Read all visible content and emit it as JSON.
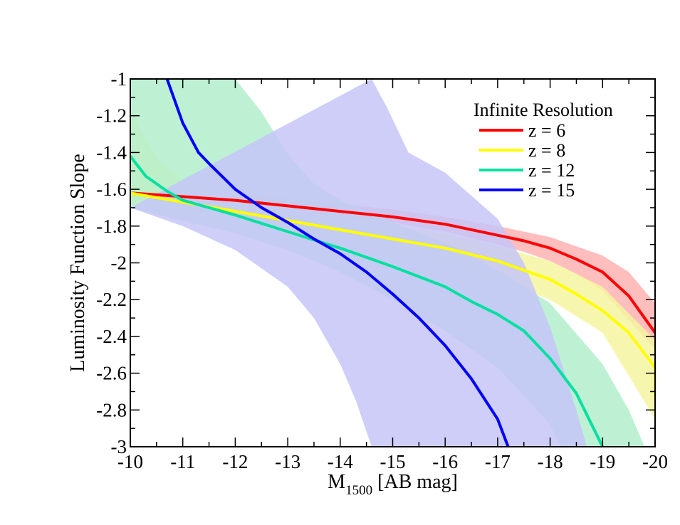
{
  "chart_data": {
    "type": "line",
    "title": "",
    "xlabel": "M",
    "xlabel_sub": "1500",
    "xlabel_unit": " [AB mag]",
    "ylabel": "Luminosity Function Slope",
    "xlim": [
      -10,
      -20
    ],
    "ylim": [
      -3,
      -1
    ],
    "x_ticks": [
      -10,
      -11,
      -12,
      -13,
      -14,
      -15,
      -16,
      -17,
      -18,
      -19,
      -20
    ],
    "x_tick_labels": [
      "-10",
      "-11",
      "-12",
      "-13",
      "-14",
      "-15",
      "-16",
      "-17",
      "-18",
      "-19",
      "-20"
    ],
    "y_ticks": [
      -1,
      -1.2,
      -1.4,
      -1.6,
      -1.8,
      -2,
      -2.2,
      -2.4,
      -2.6,
      -2.8,
      -3
    ],
    "y_tick_labels": [
      "-1",
      "-1.2",
      "-1.4",
      "-1.6",
      "-1.8",
      "-2",
      "-2.2",
      "-2.4",
      "-2.6",
      "-2.8",
      "-3"
    ],
    "grid": false,
    "legend": {
      "title": "Infinite Resolution",
      "position": "top-right"
    },
    "series": [
      {
        "name": "z = 6",
        "color": "#ff0000",
        "band_color": "#ffb3b3",
        "points": [
          [
            -10,
            -1.62
          ],
          [
            -11,
            -1.64
          ],
          [
            -12,
            -1.66
          ],
          [
            -13,
            -1.69
          ],
          [
            -14,
            -1.72
          ],
          [
            -15,
            -1.75
          ],
          [
            -16,
            -1.79
          ],
          [
            -17,
            -1.85
          ],
          [
            -17.5,
            -1.88
          ],
          [
            -18,
            -1.92
          ],
          [
            -18.5,
            -1.98
          ],
          [
            -19,
            -2.05
          ],
          [
            -19.5,
            -2.18
          ],
          [
            -20,
            -2.38
          ]
        ],
        "band_upper": [
          [
            -10,
            -1.6
          ],
          [
            -11,
            -1.61
          ],
          [
            -12,
            -1.63
          ],
          [
            -13,
            -1.65
          ],
          [
            -14,
            -1.68
          ],
          [
            -15,
            -1.71
          ],
          [
            -16,
            -1.75
          ],
          [
            -17,
            -1.8
          ],
          [
            -17.5,
            -1.83
          ],
          [
            -18,
            -1.86
          ],
          [
            -18.5,
            -1.91
          ],
          [
            -19,
            -1.96
          ],
          [
            -19.5,
            -2.05
          ],
          [
            -20,
            -2.22
          ]
        ],
        "band_lower": [
          [
            -10,
            -1.66
          ],
          [
            -11,
            -1.67
          ],
          [
            -12,
            -1.69
          ],
          [
            -13,
            -1.72
          ],
          [
            -14,
            -1.75
          ],
          [
            -15,
            -1.78
          ],
          [
            -16,
            -1.83
          ],
          [
            -17,
            -1.9
          ],
          [
            -17.5,
            -1.94
          ],
          [
            -18,
            -1.99
          ],
          [
            -18.5,
            -2.06
          ],
          [
            -19,
            -2.15
          ],
          [
            -19.5,
            -2.31
          ],
          [
            -20,
            -2.47
          ]
        ]
      },
      {
        "name": "z = 8",
        "color": "#ffff00",
        "band_color": "#f5f5a0",
        "points": [
          [
            -10,
            -1.62
          ],
          [
            -11,
            -1.67
          ],
          [
            -12,
            -1.72
          ],
          [
            -13,
            -1.77
          ],
          [
            -14,
            -1.82
          ],
          [
            -15,
            -1.87
          ],
          [
            -16,
            -1.92
          ],
          [
            -17,
            -1.99
          ],
          [
            -18,
            -2.09
          ],
          [
            -18.5,
            -2.17
          ],
          [
            -19,
            -2.26
          ],
          [
            -19.5,
            -2.38
          ],
          [
            -20,
            -2.57
          ],
          [
            -20,
            -2.72
          ]
        ],
        "band_upper": [
          [
            -10,
            -1.17
          ],
          [
            -10.5,
            -1.43
          ],
          [
            -11,
            -1.55
          ],
          [
            -12,
            -1.64
          ],
          [
            -13,
            -1.7
          ],
          [
            -14,
            -1.76
          ],
          [
            -15,
            -1.8
          ],
          [
            -16,
            -1.84
          ],
          [
            -17,
            -1.91
          ],
          [
            -18,
            -1.99
          ],
          [
            -19,
            -2.13
          ],
          [
            -20,
            -2.42
          ]
        ],
        "band_lower": [
          [
            -10,
            -1.68
          ],
          [
            -11,
            -1.74
          ],
          [
            -12,
            -1.79
          ],
          [
            -13,
            -1.83
          ],
          [
            -14,
            -1.88
          ],
          [
            -15,
            -1.94
          ],
          [
            -16,
            -2.01
          ],
          [
            -17,
            -2.09
          ],
          [
            -18,
            -2.2
          ],
          [
            -19,
            -2.38
          ],
          [
            -20,
            -2.85
          ]
        ]
      },
      {
        "name": "z = 12",
        "color": "#00e0a0",
        "band_color": "#b3eecd",
        "points": [
          [
            -10,
            -1.42
          ],
          [
            -10.3,
            -1.53
          ],
          [
            -10.7,
            -1.61
          ],
          [
            -11,
            -1.66
          ],
          [
            -11.5,
            -1.7
          ],
          [
            -12,
            -1.74
          ],
          [
            -13,
            -1.83
          ],
          [
            -14,
            -1.92
          ],
          [
            -15,
            -2.02
          ],
          [
            -16,
            -2.13
          ],
          [
            -16.5,
            -2.21
          ],
          [
            -17,
            -2.28
          ],
          [
            -17.5,
            -2.37
          ],
          [
            -18,
            -2.52
          ],
          [
            -18.5,
            -2.71
          ],
          [
            -19,
            -3.0
          ]
        ],
        "band_upper": [
          [
            -10,
            -1.0
          ],
          [
            -11,
            -1.0
          ],
          [
            -12,
            -1.0
          ],
          [
            -12.5,
            -1.18
          ],
          [
            -13,
            -1.41
          ],
          [
            -13.5,
            -1.57
          ],
          [
            -14,
            -1.66
          ],
          [
            -15,
            -1.78
          ],
          [
            -16,
            -1.89
          ],
          [
            -17,
            -2.04
          ],
          [
            -18,
            -2.22
          ],
          [
            -19,
            -2.55
          ],
          [
            -19.5,
            -2.8
          ],
          [
            -19.8,
            -3.0
          ]
        ],
        "band_lower": [
          [
            -10,
            -1.7
          ],
          [
            -11,
            -1.77
          ],
          [
            -12,
            -1.84
          ],
          [
            -13,
            -1.93
          ],
          [
            -14,
            -2.05
          ],
          [
            -15,
            -2.2
          ],
          [
            -16,
            -2.37
          ],
          [
            -17,
            -2.57
          ],
          [
            -17.5,
            -2.72
          ],
          [
            -18,
            -2.88
          ],
          [
            -18.2,
            -3.0
          ]
        ]
      },
      {
        "name": "z = 15",
        "color": "#0000ff",
        "band_color": "#c5c5f8",
        "points": [
          [
            -10.7,
            -1.0
          ],
          [
            -11,
            -1.24
          ],
          [
            -11.3,
            -1.4
          ],
          [
            -11.5,
            -1.46
          ],
          [
            -12,
            -1.6
          ],
          [
            -12.5,
            -1.7
          ],
          [
            -13,
            -1.78
          ],
          [
            -13.5,
            -1.87
          ],
          [
            -14,
            -1.95
          ],
          [
            -14.5,
            -2.05
          ],
          [
            -15,
            -2.17
          ],
          [
            -15.5,
            -2.3
          ],
          [
            -16,
            -2.45
          ],
          [
            -16.5,
            -2.63
          ],
          [
            -17,
            -2.85
          ],
          [
            -17.2,
            -3.0
          ]
        ],
        "band_upper": [
          [
            -14.6,
            -1.0
          ],
          [
            -14.9,
            -1.16
          ],
          [
            -15.3,
            -1.4
          ],
          [
            -16,
            -1.51
          ],
          [
            -17,
            -1.76
          ],
          [
            -17.5,
            -2.0
          ],
          [
            -18,
            -2.35
          ],
          [
            -18.5,
            -2.8
          ],
          [
            -18.7,
            -3.0
          ]
        ],
        "band_lower": [
          [
            -10,
            -1.7
          ],
          [
            -11,
            -1.8
          ],
          [
            -12,
            -1.93
          ],
          [
            -13,
            -2.13
          ],
          [
            -13.5,
            -2.3
          ],
          [
            -14,
            -2.55
          ],
          [
            -14.3,
            -2.75
          ],
          [
            -14.6,
            -3.0
          ]
        ]
      }
    ]
  }
}
